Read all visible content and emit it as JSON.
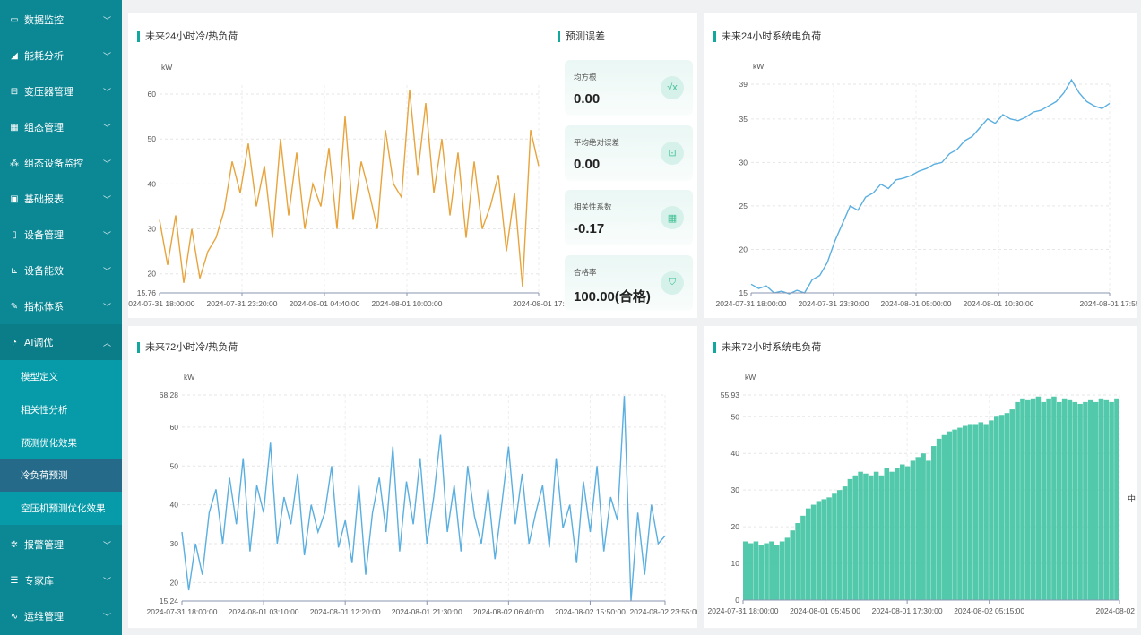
{
  "sidebar": {
    "items": [
      {
        "label": "数据监控",
        "icon": "monitor-icon"
      },
      {
        "label": "能耗分析",
        "icon": "chart-up-icon"
      },
      {
        "label": "变压器管理",
        "icon": "transformer-icon"
      },
      {
        "label": "组态管理",
        "icon": "grid-icon"
      },
      {
        "label": "组态设备监控",
        "icon": "network-icon"
      },
      {
        "label": "基础报表",
        "icon": "report-icon"
      },
      {
        "label": "设备管理",
        "icon": "device-icon"
      },
      {
        "label": "设备能效",
        "icon": "line-chart-icon"
      },
      {
        "label": "指标体系",
        "icon": "edit-icon"
      },
      {
        "label": "AI调优",
        "icon": "ai-gear-icon"
      }
    ],
    "sub_items": [
      {
        "label": "模型定义"
      },
      {
        "label": "相关性分析"
      },
      {
        "label": "预测优化效果"
      },
      {
        "label": "冷负荷预测"
      },
      {
        "label": "空压机预测优化效果"
      }
    ],
    "bottom_items": [
      {
        "label": "报警管理",
        "icon": "alarm-icon"
      },
      {
        "label": "专家库",
        "icon": "book-icon"
      },
      {
        "label": "运维管理",
        "icon": "maintenance-icon"
      }
    ],
    "active_sub": "冷负荷预测"
  },
  "error_panel": {
    "title": "预测误差",
    "cards": [
      {
        "label": "均方根",
        "value": "0.00",
        "icon": "sqrt-icon"
      },
      {
        "label": "平均绝对误差",
        "value": "0.00",
        "icon": "board-chart-icon"
      },
      {
        "label": "相关性系数",
        "value": "-0.17",
        "icon": "matrix-icon"
      },
      {
        "label": "合格率",
        "value": "100.00(合格)",
        "icon": "shield-percent-icon"
      }
    ]
  },
  "toggle_icon": "中",
  "colors": {
    "sidebar": "#0c8794",
    "accent": "#13a89e",
    "orange": "#e8a43c",
    "blue": "#5aafe0",
    "green": "#3fc3a2"
  },
  "chart_data": [
    {
      "title": "未来24小时冷/热负荷",
      "type": "line",
      "unit": "kW",
      "color": "#e8a43c",
      "ylim": [
        15.76,
        62
      ],
      "yticks": [
        "15.76",
        "20",
        "30",
        "40",
        "50",
        "60"
      ],
      "xticks": [
        "2024-07-31 18:00:00",
        "2024-07-31 23:20:00",
        "2024-08-01 04:40:00",
        "2024-08-01 10:00:00",
        "2024-08-01 17:"
      ],
      "values": [
        32,
        22,
        33,
        18,
        30,
        19,
        25,
        28,
        34,
        45,
        38,
        49,
        35,
        44,
        28,
        50,
        33,
        47,
        30,
        40,
        35,
        48,
        30,
        55,
        32,
        45,
        38,
        30,
        52,
        40,
        37,
        61,
        42,
        58,
        38,
        50,
        33,
        47,
        28,
        45,
        30,
        35,
        42,
        25,
        38,
        17,
        52,
        44
      ]
    },
    {
      "title": "未来24小时系统电负荷",
      "type": "line",
      "unit": "kW",
      "color": "#5aafe0",
      "ylim": [
        15,
        39
      ],
      "yticks": [
        "15",
        "20",
        "25",
        "30",
        "35",
        "39"
      ],
      "xticks": [
        "2024-07-31 18:00:00",
        "2024-07-31 23:30:00",
        "2024-08-01 05:00:00",
        "2024-08-01 10:30:00",
        "2024-08-01 17:55"
      ],
      "values": [
        16,
        15.5,
        15.8,
        15,
        15.2,
        14.9,
        15.3,
        15,
        16.5,
        17,
        18.5,
        21,
        23,
        25,
        24.5,
        26,
        26.5,
        27.5,
        27,
        28,
        28.2,
        28.5,
        29,
        29.3,
        29.8,
        30,
        31,
        31.5,
        32.5,
        33,
        34,
        35,
        34.5,
        35.5,
        35,
        34.8,
        35.2,
        35.8,
        36,
        36.5,
        37,
        38,
        39.5,
        38,
        37,
        36.5,
        36.2,
        36.8
      ]
    },
    {
      "title": "未来72小时冷/热负荷",
      "type": "line",
      "unit": "kW",
      "color": "#5aafe0",
      "ylim": [
        15.24,
        68.28
      ],
      "yticks": [
        "15.24",
        "20",
        "30",
        "40",
        "50",
        "60",
        "68.28"
      ],
      "xticks": [
        "2024-07-31 18:00:00",
        "2024-08-01 03:10:00",
        "2024-08-01 12:20:00",
        "2024-08-01 21:30:00",
        "2024-08-02 06:40:00",
        "2024-08-02 15:50:00",
        "2024-08-02 23:55:00"
      ],
      "values": [
        33,
        18,
        30,
        22,
        38,
        44,
        30,
        47,
        35,
        52,
        28,
        45,
        38,
        56,
        30,
        42,
        35,
        48,
        27,
        40,
        33,
        38,
        50,
        29,
        36,
        25,
        45,
        22,
        38,
        47,
        33,
        55,
        28,
        46,
        35,
        52,
        30,
        42,
        58,
        33,
        45,
        28,
        50,
        37,
        30,
        44,
        26,
        40,
        55,
        35,
        48,
        30,
        38,
        45,
        29,
        52,
        34,
        40,
        25,
        46,
        33,
        50,
        28,
        42,
        36,
        68,
        15.24,
        38,
        22,
        40,
        30,
        32
      ]
    },
    {
      "title": "未来72小时系统电负荷",
      "type": "bar",
      "unit": "kW",
      "color": "#3fc3a2",
      "ylim": [
        0,
        55.93
      ],
      "yticks": [
        "0",
        "10",
        "20",
        "30",
        "40",
        "50",
        "55.93"
      ],
      "xticks": [
        "2024-07-31 18:00:00",
        "2024-08-01 05:45:00",
        "2024-08-01 17:30:00",
        "2024-08-02 05:15:00",
        "2024-08-02 2:"
      ],
      "values": [
        16,
        15.5,
        16,
        15,
        15.5,
        16,
        15,
        16,
        17,
        19,
        21,
        23,
        25,
        26,
        27,
        27.5,
        28,
        29,
        30,
        31,
        33,
        34,
        35,
        34.5,
        34,
        35,
        34,
        36,
        35,
        36,
        37,
        36.5,
        38,
        39,
        40,
        38,
        42,
        44,
        45,
        46,
        46.5,
        47,
        47.5,
        48,
        48,
        48.5,
        48,
        49,
        50,
        50.5,
        51,
        52,
        54,
        55,
        54.5,
        55,
        55.5,
        54,
        55,
        55.5,
        54,
        55,
        54.5,
        54,
        53.5,
        54,
        54.5,
        54,
        55,
        54.5,
        54,
        55
      ]
    }
  ]
}
